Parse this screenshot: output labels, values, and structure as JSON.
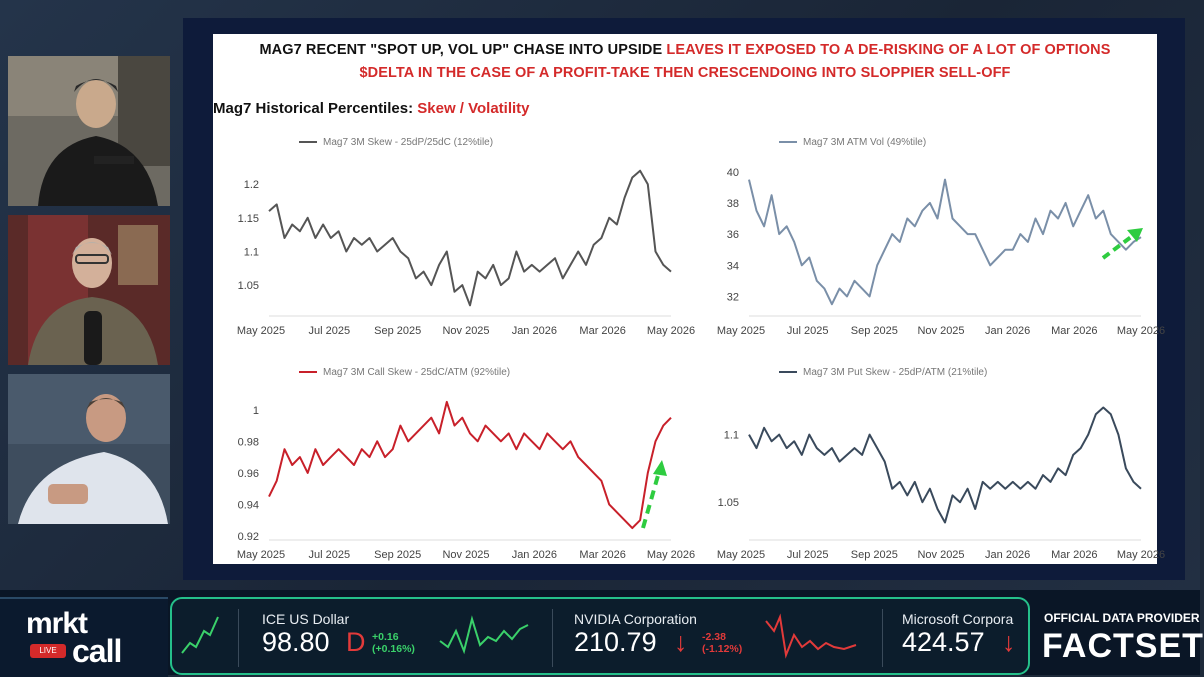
{
  "slide": {
    "headline_line1_black": "MAG7 RECENT \"SPOT UP, VOL UP\" CHASE INTO UPSIDE ",
    "headline_line1_red": "LEAVES IT EXPOSED TO A DE-RISKING OF A LOT OF OPTIONS",
    "headline_line2_red": "$DELTA IN THE CASE OF A PROFIT-TAKE THEN CRESCENDOING INTO SLOPPIER SELL-OFF",
    "subtitle_black": "Mag7 Historical Percentiles: ",
    "subtitle_red": "Skew / Volatility"
  },
  "chart_data": [
    {
      "type": "line",
      "legend": "Mag7 3M Skew - 25dP/25dC (12%tile)",
      "color": "#555555",
      "x_ticks": [
        "May 2025",
        "Jul 2025",
        "Sep 2025",
        "Nov 2025",
        "Jan 2026",
        "Mar 2026",
        "May 2026"
      ],
      "y_ticks": [
        "1.05",
        "1.1",
        "1.15",
        "1.2"
      ],
      "ylim": [
        1.01,
        1.23
      ],
      "x": [
        0,
        1,
        2,
        3,
        4,
        5,
        6,
        7,
        8,
        9,
        10,
        11,
        12,
        13,
        14,
        15,
        16,
        17,
        18,
        19,
        20,
        21,
        22,
        23,
        24,
        25,
        26,
        27,
        28,
        29,
        30,
        31,
        32,
        33,
        34,
        35,
        36,
        37,
        38,
        39,
        40,
        41,
        42,
        43,
        44,
        45,
        46,
        47,
        48,
        49,
        50,
        51,
        52
      ],
      "values": [
        1.16,
        1.17,
        1.12,
        1.14,
        1.13,
        1.15,
        1.12,
        1.14,
        1.12,
        1.13,
        1.1,
        1.12,
        1.11,
        1.12,
        1.1,
        1.11,
        1.12,
        1.1,
        1.09,
        1.06,
        1.07,
        1.05,
        1.08,
        1.1,
        1.04,
        1.05,
        1.02,
        1.07,
        1.06,
        1.08,
        1.05,
        1.06,
        1.1,
        1.07,
        1.08,
        1.07,
        1.08,
        1.09,
        1.06,
        1.08,
        1.1,
        1.08,
        1.11,
        1.12,
        1.15,
        1.14,
        1.18,
        1.21,
        1.22,
        1.2,
        1.1,
        1.08,
        1.07
      ]
    },
    {
      "type": "line",
      "legend": "Mag7 3M ATM Vol (49%tile)",
      "color": "#7a8fa8",
      "x_ticks": [
        "May 2025",
        "Jul 2025",
        "Sep 2025",
        "Nov 2025",
        "Jan 2026",
        "Mar 2026",
        "May 2026"
      ],
      "y_ticks": [
        "32",
        "34",
        "36",
        "38",
        "40"
      ],
      "ylim": [
        31,
        40.5
      ],
      "x": [
        0,
        1,
        2,
        3,
        4,
        5,
        6,
        7,
        8,
        9,
        10,
        11,
        12,
        13,
        14,
        15,
        16,
        17,
        18,
        19,
        20,
        21,
        22,
        23,
        24,
        25,
        26,
        27,
        28,
        29,
        30,
        31,
        32,
        33,
        34,
        35,
        36,
        37,
        38,
        39,
        40,
        41,
        42,
        43,
        44,
        45,
        46,
        47,
        48,
        49,
        50,
        51,
        52
      ],
      "values": [
        39.5,
        37.5,
        36.5,
        38.5,
        36,
        36.5,
        35.5,
        34,
        34.5,
        33,
        32.5,
        31.5,
        32.5,
        32,
        33,
        32.5,
        32,
        34,
        35,
        36,
        35.5,
        37,
        36.5,
        37.5,
        38,
        37,
        39.5,
        37,
        36.5,
        36,
        36,
        35,
        34,
        34.5,
        35,
        35,
        36,
        35.5,
        37,
        36,
        37.5,
        37,
        38,
        36.5,
        37.5,
        38.5,
        37,
        37.5,
        36,
        35.5,
        35,
        35.5,
        35.8
      ]
    },
    {
      "type": "line",
      "legend": "Mag7 3M Call Skew - 25dC/ATM (92%tile)",
      "color": "#c8202a",
      "x_ticks": [
        "May 2025",
        "Jul 2025",
        "Sep 2025",
        "Nov 2025",
        "Jan 2026",
        "Mar 2026",
        "May 2026"
      ],
      "y_ticks": [
        "0.92",
        "0.94",
        "0.96",
        "0.98",
        "1"
      ],
      "ylim": [
        0.92,
        1.01
      ],
      "x": [
        0,
        1,
        2,
        3,
        4,
        5,
        6,
        7,
        8,
        9,
        10,
        11,
        12,
        13,
        14,
        15,
        16,
        17,
        18,
        19,
        20,
        21,
        22,
        23,
        24,
        25,
        26,
        27,
        28,
        29,
        30,
        31,
        32,
        33,
        34,
        35,
        36,
        37,
        38,
        39,
        40,
        41,
        42,
        43,
        44,
        45,
        46,
        47,
        48,
        49,
        50,
        51,
        52
      ],
      "values": [
        0.945,
        0.955,
        0.975,
        0.965,
        0.97,
        0.96,
        0.975,
        0.965,
        0.97,
        0.975,
        0.97,
        0.965,
        0.975,
        0.97,
        0.98,
        0.97,
        0.975,
        0.99,
        0.98,
        0.985,
        0.99,
        0.995,
        0.985,
        1.005,
        0.99,
        0.995,
        0.985,
        0.98,
        0.99,
        0.985,
        0.98,
        0.985,
        0.975,
        0.985,
        0.98,
        0.975,
        0.985,
        0.98,
        0.975,
        0.98,
        0.97,
        0.965,
        0.96,
        0.955,
        0.94,
        0.935,
        0.93,
        0.925,
        0.93,
        0.96,
        0.98,
        0.99,
        0.995
      ]
    },
    {
      "type": "line",
      "legend": "Mag7 3M Put Skew - 25dP/ATM (21%tile)",
      "color": "#3a4a5c",
      "x_ticks": [
        "May 2025",
        "Jul 2025",
        "Sep 2025",
        "Nov 2025",
        "Jan 2026",
        "Mar 2026",
        "May 2026"
      ],
      "y_ticks": [
        "1.05",
        "1.1"
      ],
      "ylim": [
        1.025,
        1.13
      ],
      "x": [
        0,
        1,
        2,
        3,
        4,
        5,
        6,
        7,
        8,
        9,
        10,
        11,
        12,
        13,
        14,
        15,
        16,
        17,
        18,
        19,
        20,
        21,
        22,
        23,
        24,
        25,
        26,
        27,
        28,
        29,
        30,
        31,
        32,
        33,
        34,
        35,
        36,
        37,
        38,
        39,
        40,
        41,
        42,
        43,
        44,
        45,
        46,
        47,
        48,
        49,
        50,
        51,
        52
      ],
      "values": [
        1.1,
        1.09,
        1.105,
        1.095,
        1.1,
        1.09,
        1.095,
        1.085,
        1.1,
        1.09,
        1.085,
        1.09,
        1.08,
        1.085,
        1.09,
        1.085,
        1.1,
        1.09,
        1.08,
        1.06,
        1.065,
        1.055,
        1.065,
        1.05,
        1.06,
        1.045,
        1.035,
        1.055,
        1.05,
        1.06,
        1.045,
        1.065,
        1.06,
        1.065,
        1.06,
        1.065,
        1.06,
        1.065,
        1.06,
        1.07,
        1.065,
        1.075,
        1.07,
        1.085,
        1.09,
        1.1,
        1.115,
        1.12,
        1.115,
        1.1,
        1.075,
        1.065,
        1.06
      ]
    }
  ],
  "ticker": {
    "logo_top": "mrkt",
    "logo_bottom": "call",
    "live_badge": "LIVE",
    "items": [
      {
        "name": "ICE US Dollar",
        "price": "98.80",
        "flag": "D",
        "change": "+0.16",
        "pct": "(+0.16%)",
        "color": "#3ad16a"
      },
      {
        "name": "NVIDIA Corporation",
        "price": "210.79",
        "flag": "↓",
        "change": "-2.38",
        "pct": "(-1.12%)",
        "color": "#e23a3a"
      },
      {
        "name": "Microsoft Corpora",
        "price": "424.57",
        "flag": "↓",
        "change": "",
        "pct": "",
        "color": "#e23a3a"
      }
    ],
    "provider_label": "OFFICIAL DATA PROVIDER",
    "provider_name": "FACTSET"
  }
}
